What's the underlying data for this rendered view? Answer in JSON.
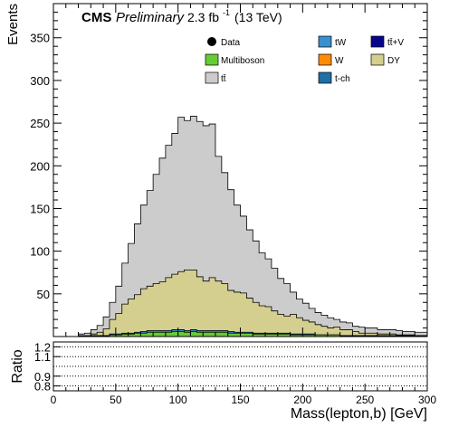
{
  "chart_data": {
    "type": "bar",
    "stacked": true,
    "bin_edges_start": 0,
    "bin_width": 5,
    "xlim": [
      0,
      300
    ],
    "ylim": [
      0,
      390
    ],
    "xlabel": "Mass(lepton,b) [GeV]",
    "ylabel": "Events",
    "x_ticks": [
      0,
      50,
      100,
      150,
      200,
      250,
      300
    ],
    "y_ticks": [
      50,
      100,
      150,
      200,
      250,
      300,
      350
    ],
    "cms_label": "CMS",
    "preliminary_label": "Preliminary",
    "lumi_label": "2.3 fb",
    "lumi_exp": "-1",
    "energy_label": "(13 TeV)",
    "legend": [
      {
        "name": "Data",
        "kind": "marker",
        "color": "#000000"
      },
      {
        "name": "tW",
        "kind": "box",
        "color": "#3a8fd0"
      },
      {
        "name": "tt̄+V",
        "kind": "box",
        "color": "#06068c"
      },
      {
        "name": "Multiboson",
        "kind": "box",
        "color": "#66cc33"
      },
      {
        "name": "W",
        "kind": "box",
        "color": "#ff8c00"
      },
      {
        "name": "DY",
        "kind": "box",
        "color": "#d4cf8f"
      },
      {
        "name": "tt̄",
        "kind": "box",
        "color": "#cccccc"
      },
      {
        "name": "t-ch",
        "kind": "box",
        "color": "#1f6ea6"
      }
    ],
    "series": [
      {
        "name": "Multiboson",
        "color": "#66cc33",
        "values": [
          0,
          0,
          0,
          0,
          0,
          0,
          1,
          1,
          1,
          2,
          2,
          3,
          3,
          4,
          4,
          5,
          5,
          5,
          5,
          6,
          6,
          5,
          6,
          5,
          5,
          5,
          5,
          5,
          4,
          4,
          4,
          4,
          3,
          3,
          3,
          3,
          3,
          3,
          2,
          2,
          2,
          2,
          2,
          2,
          2,
          2,
          1,
          1,
          1,
          1,
          1,
          1,
          1,
          1,
          1,
          1,
          1,
          1,
          1,
          1
        ]
      },
      {
        "name": "tW",
        "color": "#3a8fd0",
        "values": [
          0,
          0,
          0,
          0,
          0,
          0,
          0,
          0,
          0,
          1,
          1,
          1,
          1,
          1,
          2,
          2,
          2,
          2,
          2,
          2,
          2,
          2,
          2,
          2,
          2,
          2,
          2,
          2,
          2,
          1,
          1,
          1,
          1,
          1,
          1,
          1,
          1,
          1,
          1,
          1,
          1,
          1,
          0,
          0,
          0,
          0,
          0,
          0,
          0,
          0,
          0,
          0,
          0,
          0,
          0,
          0,
          0,
          0,
          0,
          0
        ]
      },
      {
        "name": "DY",
        "color": "#d4cf8f",
        "values": [
          0,
          0,
          0,
          0,
          1,
          1,
          2,
          4,
          8,
          17,
          24,
          34,
          40,
          44,
          50,
          52,
          55,
          57,
          62,
          65,
          68,
          71,
          70,
          63,
          58,
          62,
          58,
          55,
          48,
          47,
          46,
          40,
          36,
          32,
          31,
          26,
          22,
          20,
          23,
          19,
          16,
          14,
          12,
          10,
          8,
          9,
          7,
          7,
          5,
          3,
          3,
          3,
          2,
          2,
          2,
          1,
          1,
          1,
          0,
          0
        ]
      },
      {
        "name": "tt̄",
        "color": "#cccccc",
        "values": [
          0,
          0,
          0,
          0,
          2,
          3,
          5,
          8,
          14,
          20,
          32,
          48,
          65,
          83,
          98,
          112,
          128,
          145,
          155,
          165,
          181,
          175,
          180,
          182,
          182,
          180,
          146,
          130,
          118,
          102,
          90,
          80,
          72,
          62,
          56,
          50,
          42,
          38,
          26,
          22,
          20,
          16,
          14,
          13,
          12,
          9,
          9,
          8,
          6,
          7,
          6,
          6,
          5,
          5,
          5,
          5,
          4,
          4,
          4,
          4
        ]
      }
    ]
  },
  "ratio_panel": {
    "ylabel": "Ratio",
    "y_ticks": [
      0.8,
      0.9,
      1.1,
      1.2
    ]
  }
}
